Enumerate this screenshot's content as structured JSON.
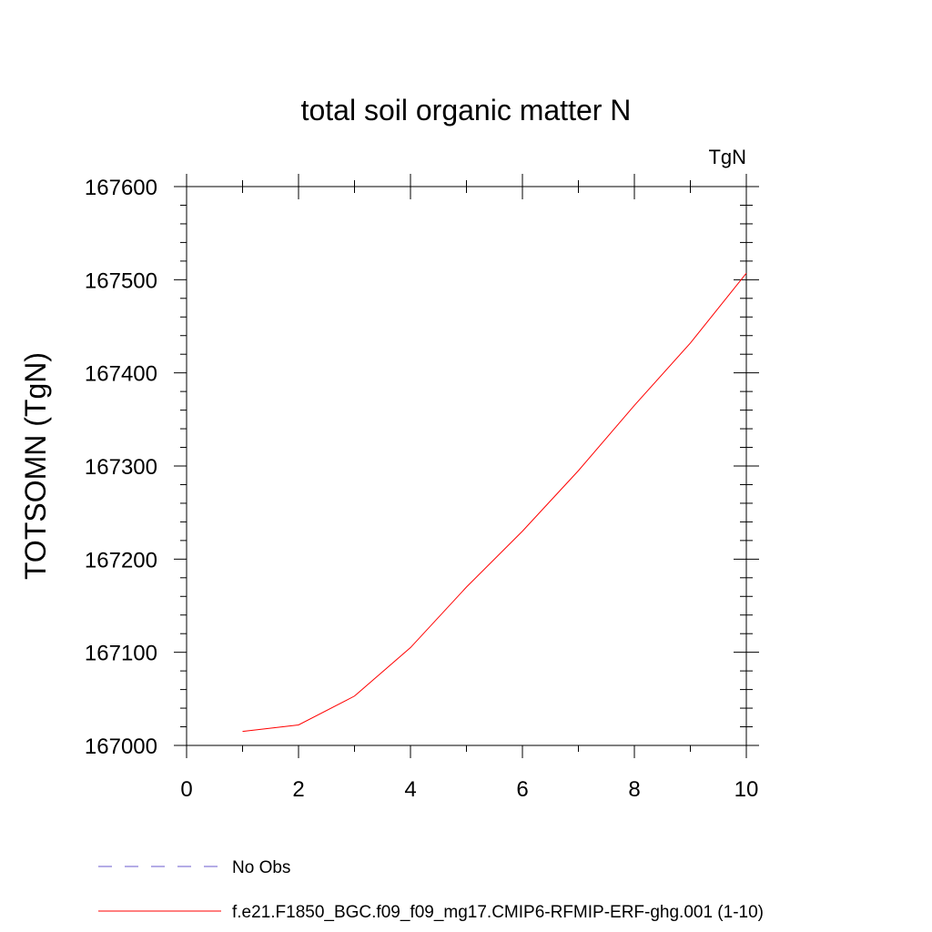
{
  "chart_data": {
    "type": "line",
    "title": "total soil organic matter N",
    "units_label": "TgN",
    "xlabel": "",
    "ylabel": "TOTSOMN  (TgN)",
    "xlim": [
      0,
      10
    ],
    "ylim": [
      167000,
      167600
    ],
    "x_ticks": [
      0,
      2,
      4,
      6,
      8,
      10
    ],
    "x_minor_ticks": [
      1,
      3,
      5,
      7,
      9
    ],
    "y_ticks": [
      167000,
      167100,
      167200,
      167300,
      167400,
      167500,
      167600
    ],
    "y_minor_step": 20,
    "series": [
      {
        "name": "f.e21.F1850_BGC.f09_f09_mg17.CMIP6-RFMIP-ERF-ghg.001 (1-10)",
        "color": "#ff0000",
        "dash": "solid",
        "x": [
          1,
          2,
          3,
          4,
          5,
          6,
          7,
          8,
          9,
          10
        ],
        "y": [
          167015,
          167022,
          167053,
          167105,
          167170,
          167230,
          167295,
          167365,
          167432,
          167507
        ]
      }
    ],
    "legend": [
      {
        "label": "No Obs",
        "color": "#6a5acd",
        "dash": "dashed"
      },
      {
        "label": "f.e21.F1850_BGC.f09_f09_mg17.CMIP6-RFMIP-ERF-ghg.001 (1-10)",
        "color": "#ff0000",
        "dash": "solid"
      }
    ]
  }
}
